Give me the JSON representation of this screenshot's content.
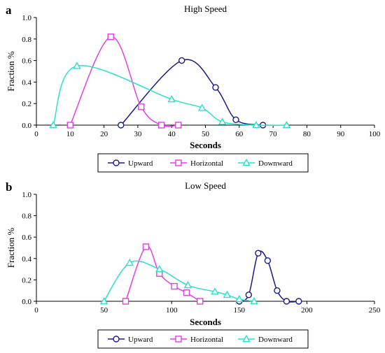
{
  "chart_data": [
    {
      "panel_label": "a",
      "type": "line",
      "title": "High Speed",
      "xlabel": "Seconds",
      "ylabel": "Fraction %",
      "xlim": [
        0,
        100
      ],
      "ylim": [
        0,
        1.0
      ],
      "x_ticks": [
        0,
        10,
        20,
        30,
        40,
        50,
        60,
        70,
        80,
        90,
        100
      ],
      "y_ticks": [
        "0.0",
        "0.2",
        "0.4",
        "0.6",
        "0.8",
        "1.0"
      ],
      "grid": false,
      "legend_position": "bottom-center",
      "series": [
        {
          "name": "Upward",
          "color": "#1a1a8c",
          "marker": "circle",
          "x": [
            25,
            43,
            53,
            59,
            67
          ],
          "y": [
            0.0,
            0.6,
            0.35,
            0.05,
            0.0
          ]
        },
        {
          "name": "Horizontal",
          "color": "#e040e0",
          "marker": "square",
          "x": [
            10,
            22,
            31,
            37,
            42
          ],
          "y": [
            0.0,
            0.82,
            0.17,
            0.0,
            0.0
          ]
        },
        {
          "name": "Downward",
          "color": "#2de0c8",
          "marker": "triangle",
          "x": [
            5,
            12,
            40,
            49,
            55,
            65,
            74
          ],
          "y": [
            0.0,
            0.55,
            0.24,
            0.16,
            0.03,
            0.0,
            0.0
          ]
        }
      ]
    },
    {
      "panel_label": "b",
      "type": "line",
      "title": "Low Speed",
      "xlabel": "Seconds",
      "ylabel": "Fraction %",
      "xlim": [
        0,
        250
      ],
      "ylim": [
        0,
        1.0
      ],
      "x_ticks": [
        0,
        50,
        100,
        150,
        200,
        250
      ],
      "y_ticks": [
        "0.0",
        "0.2",
        "0.4",
        "0.6",
        "0.8",
        "1.0"
      ],
      "grid": false,
      "legend_position": "bottom-center",
      "series": [
        {
          "name": "Upward",
          "color": "#1a1a8c",
          "marker": "circle",
          "x": [
            150,
            157,
            164,
            171,
            178,
            185,
            194
          ],
          "y": [
            0.0,
            0.06,
            0.45,
            0.38,
            0.1,
            0.0,
            0.0
          ]
        },
        {
          "name": "Horizontal",
          "color": "#e040e0",
          "marker": "square",
          "x": [
            66,
            81,
            91,
            102,
            111,
            121
          ],
          "y": [
            0.0,
            0.51,
            0.26,
            0.14,
            0.08,
            0.0
          ]
        },
        {
          "name": "Downward",
          "color": "#2de0c8",
          "marker": "triangle",
          "x": [
            50,
            69,
            91,
            112,
            132,
            141,
            150,
            161
          ],
          "y": [
            0.0,
            0.36,
            0.3,
            0.15,
            0.09,
            0.06,
            0.02,
            0.0
          ]
        }
      ]
    }
  ]
}
